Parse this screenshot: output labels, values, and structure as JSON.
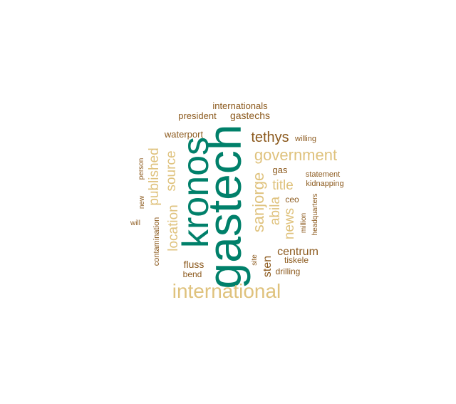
{
  "palette": {
    "teal": "#00806a",
    "brown": "#8c5a1e",
    "tan": "#dfc27d"
  },
  "words": [
    {
      "id": "gastech",
      "text": "gastech",
      "color": "teal"
    },
    {
      "id": "kronos",
      "text": "kronos",
      "color": "teal"
    },
    {
      "id": "international",
      "text": "international",
      "color": "tan"
    },
    {
      "id": "government",
      "text": "government",
      "color": "tan"
    },
    {
      "id": "sanjorge",
      "text": "sanjorge",
      "color": "tan"
    },
    {
      "id": "tethys",
      "text": "tethys",
      "color": "brown"
    },
    {
      "id": "published",
      "text": "published",
      "color": "tan"
    },
    {
      "id": "source",
      "text": "source",
      "color": "tan"
    },
    {
      "id": "location",
      "text": "location",
      "color": "tan"
    },
    {
      "id": "abila",
      "text": "abila",
      "color": "tan"
    },
    {
      "id": "title",
      "text": "title",
      "color": "tan"
    },
    {
      "id": "news",
      "text": "news",
      "color": "tan"
    },
    {
      "id": "centrum",
      "text": "centrum",
      "color": "brown"
    },
    {
      "id": "sten",
      "text": "sten",
      "color": "brown"
    },
    {
      "id": "gastechs",
      "text": "gastechs",
      "color": "brown"
    },
    {
      "id": "fluss",
      "text": "fluss",
      "color": "brown"
    },
    {
      "id": "gas",
      "text": "gas",
      "color": "brown"
    },
    {
      "id": "waterport",
      "text": "waterport",
      "color": "brown"
    },
    {
      "id": "president",
      "text": "president",
      "color": "brown"
    },
    {
      "id": "internationals",
      "text": "internationals",
      "color": "brown"
    },
    {
      "id": "ceo",
      "text": "ceo",
      "color": "brown"
    },
    {
      "id": "bend",
      "text": "bend",
      "color": "brown"
    },
    {
      "id": "drilling",
      "text": "drilling",
      "color": "brown"
    },
    {
      "id": "tiskele",
      "text": "tiskele",
      "color": "brown"
    },
    {
      "id": "contamination",
      "text": "contamination",
      "color": "brown"
    },
    {
      "id": "statement",
      "text": "statement",
      "color": "brown"
    },
    {
      "id": "kidnapping",
      "text": "kidnapping",
      "color": "brown"
    },
    {
      "id": "willing",
      "text": "willing",
      "color": "brown"
    },
    {
      "id": "person",
      "text": "person",
      "color": "brown"
    },
    {
      "id": "new",
      "text": "new",
      "color": "brown"
    },
    {
      "id": "will",
      "text": "will",
      "color": "brown"
    },
    {
      "id": "headquarters",
      "text": "headquarters",
      "color": "brown"
    },
    {
      "id": "million",
      "text": "million",
      "color": "brown"
    },
    {
      "id": "site",
      "text": "site",
      "color": "brown"
    }
  ]
}
